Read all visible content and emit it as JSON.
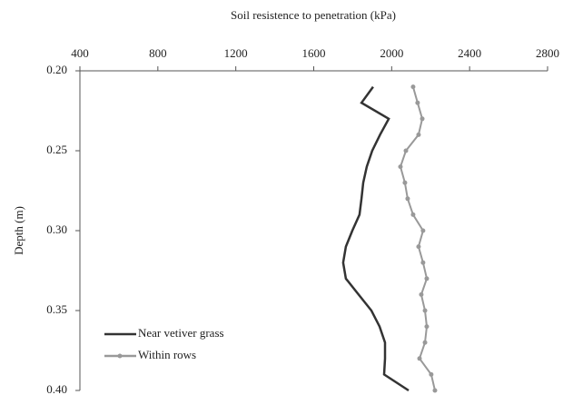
{
  "chart_data": {
    "type": "line",
    "xlabel": "Soil resistence to penetration (kPa)",
    "ylabel": "Depth (m)",
    "x_axis_position": "top",
    "y_inverted": true,
    "xlim": [
      400,
      2800
    ],
    "xticks": [
      400,
      800,
      1200,
      1600,
      2000,
      2400,
      2800
    ],
    "ylim": [
      0.2,
      0.4
    ],
    "yticks": [
      {
        "value": 0.2,
        "label": "0.20"
      },
      0.25,
      {
        "value": 0.3,
        "label": "0.30"
      },
      0.35,
      {
        "value": 0.4,
        "label": "0.40"
      }
    ],
    "y": [
      0.21,
      0.22,
      0.23,
      0.24,
      0.25,
      0.26,
      0.27,
      0.28,
      0.29,
      0.3,
      0.31,
      0.32,
      0.33,
      0.34,
      0.35,
      0.36,
      0.37,
      0.38,
      0.39,
      0.4
    ],
    "legend": "lower left",
    "series": [
      {
        "name": "Near vetiver grass",
        "color": "#333333",
        "marker": false,
        "x": [
          1905,
          1845,
          1985,
          1940,
          1900,
          1872,
          1854,
          1845,
          1835,
          1798,
          1765,
          1751,
          1765,
          1830,
          1896,
          1938,
          1966,
          1966,
          1961,
          2087
        ]
      },
      {
        "name": "Within rows",
        "color": "#999999",
        "marker": true,
        "x": [
          2110,
          2133,
          2157,
          2138,
          2073,
          2045,
          2068,
          2082,
          2110,
          2161,
          2138,
          2161,
          2180,
          2152,
          2171,
          2180,
          2171,
          2143,
          2203,
          2222
        ]
      }
    ]
  }
}
